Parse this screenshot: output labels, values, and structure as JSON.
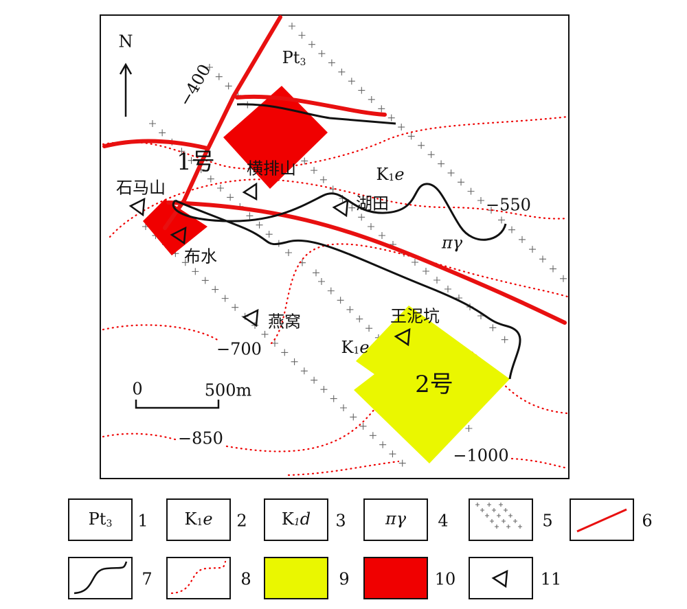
{
  "map": {
    "north": "N",
    "pt3": {
      "text": "Pt",
      "sub": "3"
    },
    "contours": [
      "−400",
      "−550",
      "−700",
      "−850",
      "−1000"
    ],
    "deposits": [
      "1号",
      "2号"
    ],
    "places": [
      "横排山",
      "湖田",
      "石马山",
      "布水",
      "燕窝",
      "王泥坑"
    ],
    "rock_labels": [
      {
        "text": "K",
        "sub": "1",
        "italic": "e"
      },
      {
        "text": "K",
        "sub": "1",
        "italic": "e"
      },
      {
        "text": "πγ"
      }
    ]
  },
  "scale": {
    "start": "0",
    "end": "500m"
  },
  "legend": [
    {
      "symbol": {
        "text": "Pt",
        "sub": "3"
      },
      "number": "1"
    },
    {
      "symbol": {
        "text": "K",
        "sub": "1",
        "italic": "e"
      },
      "number": "2"
    },
    {
      "symbol": {
        "text": "K",
        "sub": "1",
        "italic": "d"
      },
      "number": "3"
    },
    {
      "symbol": {
        "text": "πγ"
      },
      "number": "4"
    },
    {
      "number": "5"
    },
    {
      "number": "6"
    },
    {
      "number": "7"
    },
    {
      "number": "8"
    },
    {
      "number": "9"
    },
    {
      "number": "10"
    },
    {
      "number": "11"
    }
  ]
}
